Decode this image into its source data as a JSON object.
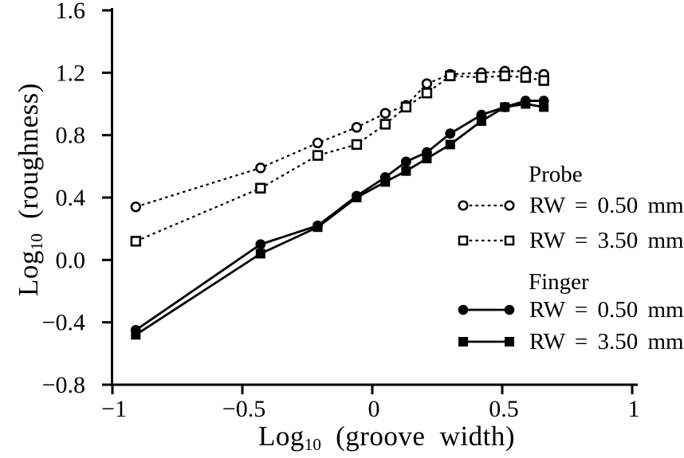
{
  "figure": {
    "background": "#ffffff",
    "ink_color": "#000000"
  },
  "chart_data": {
    "type": "line",
    "title": "",
    "xlabel": "Log10 (groove width)",
    "ylabel": "Log10 (roughness)",
    "xlim": [
      -1,
      1
    ],
    "ylim": [
      -0.8,
      1.6
    ],
    "grid": false,
    "legend_position": "right-middle",
    "x_ticks": [
      {
        "v": -1,
        "label": "−1"
      },
      {
        "v": -0.5,
        "label": "−0.5"
      },
      {
        "v": 0,
        "label": "0"
      },
      {
        "v": 0.5,
        "label": "0.5"
      },
      {
        "v": 1,
        "label": "1"
      }
    ],
    "y_ticks": [
      {
        "v": 1.6,
        "label": "1.6"
      },
      {
        "v": 1.2,
        "label": "1.2"
      },
      {
        "v": 0.8,
        "label": "0.8"
      },
      {
        "v": 0.4,
        "label": "0.4"
      },
      {
        "v": 0.0,
        "label": "0.0"
      },
      {
        "v": -0.4,
        "label": "−0.4"
      },
      {
        "v": -0.8,
        "label": "−0.8"
      }
    ],
    "x": [
      -0.91,
      -0.43,
      -0.21,
      -0.06,
      0.05,
      0.13,
      0.21,
      0.3,
      0.42,
      0.51,
      0.59,
      0.66
    ],
    "series": [
      {
        "name": "Probe RW = 0.50 mm",
        "group": "Probe",
        "label": "RW = 0.50 mm",
        "marker": "open-circle",
        "line": "dotted",
        "values": [
          0.34,
          0.59,
          0.75,
          0.85,
          0.94,
          0.99,
          1.13,
          1.19,
          1.2,
          1.21,
          1.21,
          1.19
        ]
      },
      {
        "name": "Probe RW = 3.50 mm",
        "group": "Probe",
        "label": "RW = 3.50 mm",
        "marker": "open-square",
        "line": "dotted",
        "values": [
          0.12,
          0.46,
          0.67,
          0.74,
          0.87,
          0.98,
          1.07,
          1.18,
          1.17,
          1.18,
          1.17,
          1.15
        ]
      },
      {
        "name": "Finger RW = 0.50 mm",
        "group": "Finger",
        "label": "RW = 0.50 mm",
        "marker": "filled-circle",
        "line": "solid",
        "values": [
          -0.45,
          0.1,
          0.22,
          0.41,
          0.53,
          0.63,
          0.69,
          0.81,
          0.93,
          0.98,
          1.02,
          1.02
        ]
      },
      {
        "name": "Finger RW = 3.50 mm",
        "group": "Finger",
        "label": "RW = 3.50 mm",
        "marker": "filled-square",
        "line": "solid",
        "values": [
          -0.48,
          0.04,
          0.21,
          0.4,
          0.5,
          0.57,
          0.65,
          0.74,
          0.89,
          0.98,
          1.0,
          0.98
        ]
      }
    ]
  },
  "labels": {
    "ylabel_main": "Log",
    "ylabel_sub": "10",
    "ylabel_rest": "(roughness)",
    "xlabel_main": "Log",
    "xlabel_sub": "10",
    "xlabel_rest": "(groove width)"
  },
  "legend": {
    "probe_heading": "Probe",
    "finger_heading": "Finger",
    "probe_rw050_label": "RW = 0.50 mm",
    "probe_rw350_label": "RW = 3.50 mm",
    "finger_rw050_label": "RW = 0.50 mm",
    "finger_rw350_label": "RW = 3.50 mm"
  }
}
